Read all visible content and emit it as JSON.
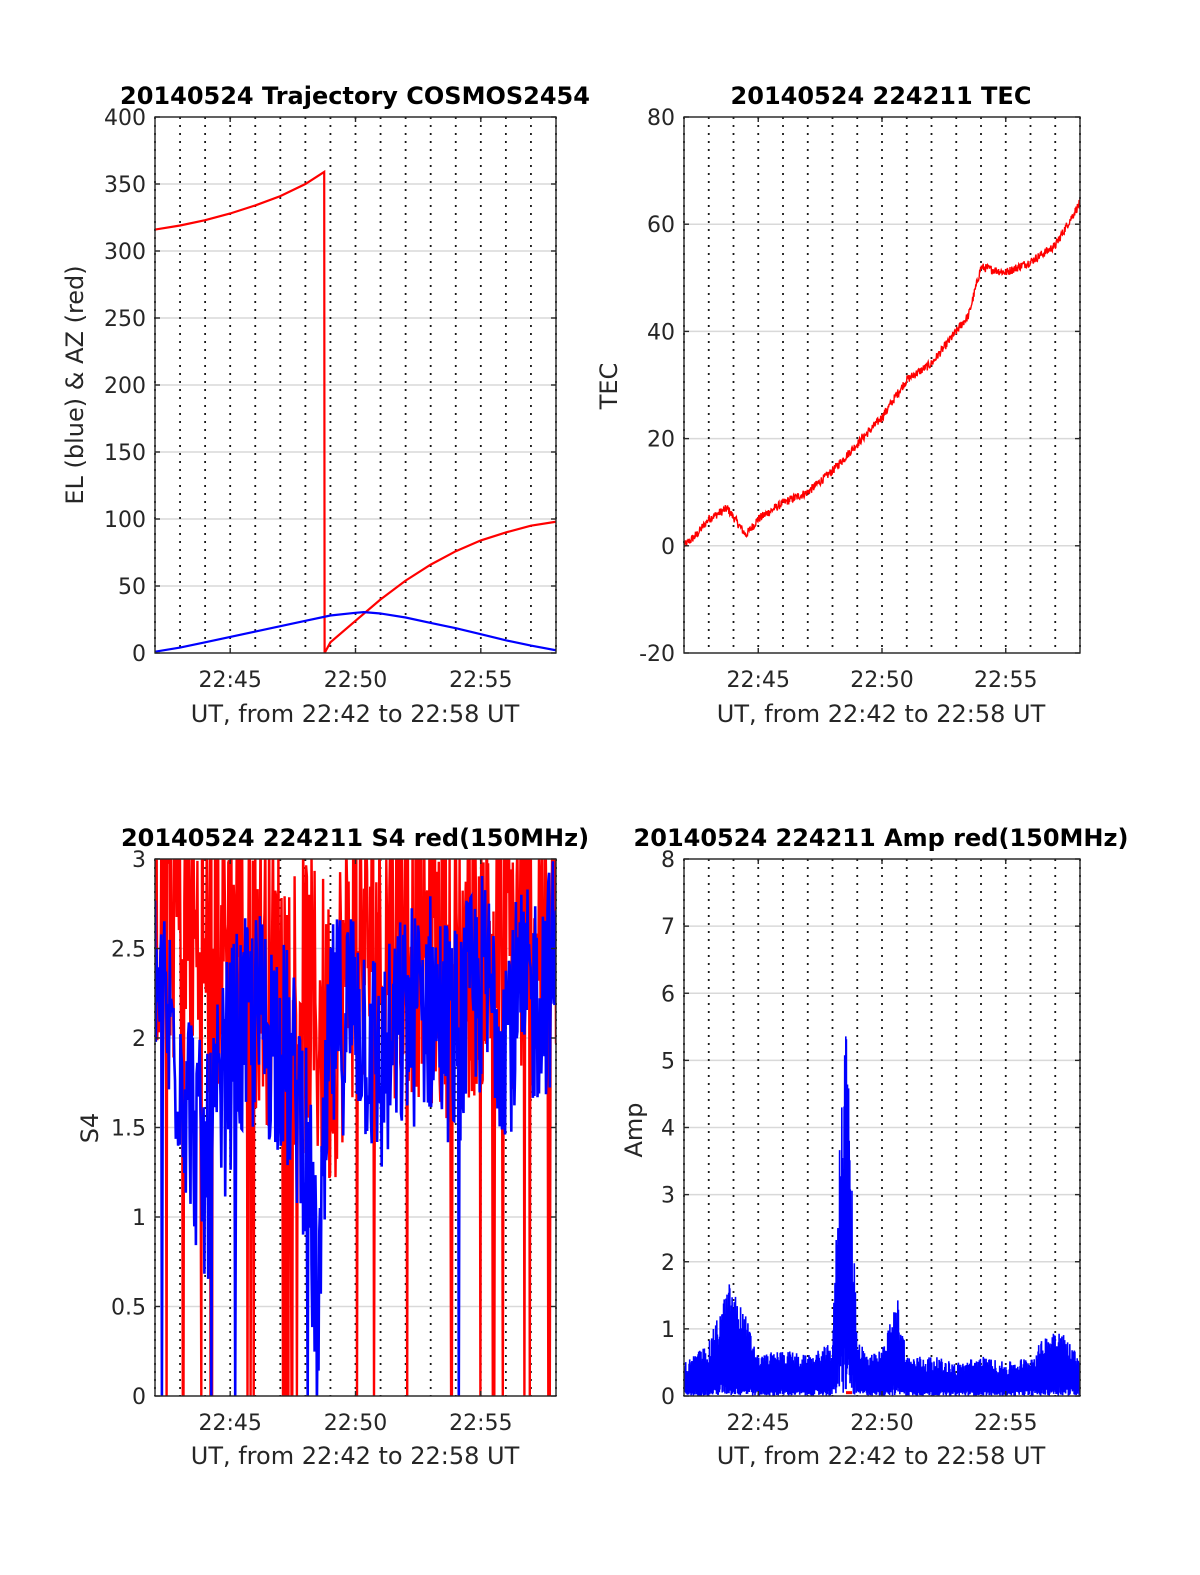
{
  "chart_data": [
    {
      "type": "line",
      "title": "20140524 Trajectory COSMOS2454",
      "xlabel": "UT, from 22:42 to 22:58 UT",
      "ylabel": "EL (blue) & AZ (red)",
      "xlim": [
        "22:42",
        "22:58"
      ],
      "ylim": [
        0,
        400
      ],
      "xticks": [
        "22:45",
        "22:50",
        "22:55"
      ],
      "yticks": [
        "0",
        "50",
        "100",
        "150",
        "200",
        "250",
        "300",
        "350",
        "400"
      ],
      "series": [
        {
          "color": "#ff0000",
          "x": [
            "22:42",
            "22:43",
            "22:44",
            "22:45",
            "22:46",
            "22:47",
            "22:48",
            "22:48:45",
            "22:48:46",
            "22:49",
            "22:50",
            "22:51",
            "22:52",
            "22:53",
            "22:54",
            "22:55",
            "22:56",
            "22:57",
            "22:58"
          ],
          "values": [
            316,
            319,
            323,
            328,
            334,
            341,
            350,
            359,
            0,
            8,
            24,
            40,
            54,
            66,
            76,
            84,
            90,
            95,
            98
          ]
        },
        {
          "color": "#0000ff",
          "x": [
            "22:42",
            "22:43",
            "22:44",
            "22:45",
            "22:46",
            "22:47",
            "22:48",
            "22:49",
            "22:50",
            "22:50:20",
            "22:51",
            "22:52",
            "22:53",
            "22:54",
            "22:55",
            "22:56",
            "22:57",
            "22:58"
          ],
          "values": [
            1,
            4,
            8,
            12,
            16,
            20,
            24,
            28,
            30,
            30.5,
            29.5,
            26.5,
            22.5,
            18.5,
            14,
            9.5,
            5.5,
            2
          ]
        }
      ],
      "grid": "on"
    },
    {
      "type": "line",
      "title": "20140524 224211 TEC",
      "xlabel": "UT, from 22:42 to 22:58 UT",
      "ylabel": "TEC",
      "xlim": [
        "22:42",
        "22:58"
      ],
      "ylim": [
        -20,
        80
      ],
      "xticks": [
        "22:45",
        "22:50",
        "22:55"
      ],
      "yticks": [
        "-20",
        "0",
        "20",
        "40",
        "60",
        "80"
      ],
      "series": [
        {
          "color": "#ff0000",
          "x": [
            "22:42",
            "22:42:30",
            "22:43",
            "22:43:45",
            "22:44:30",
            "22:45",
            "22:46",
            "22:47",
            "22:48",
            "22:49",
            "22:50",
            "22:51",
            "22:52",
            "22:53",
            "22:53:30",
            "22:54",
            "22:55",
            "22:56",
            "22:57",
            "22:58"
          ],
          "values": [
            0,
            2,
            5,
            7,
            2,
            5,
            8,
            10,
            14,
            19,
            24,
            31,
            34,
            40,
            43,
            52,
            51,
            53,
            56,
            64
          ]
        }
      ],
      "grid": "on"
    },
    {
      "type": "line",
      "title": "20140524 224211 S4 red(150MHz)",
      "xlabel": "UT, from 22:42 to 22:58 UT",
      "ylabel": "S4",
      "xlim": [
        "22:42",
        "22:58"
      ],
      "ylim": [
        0,
        3
      ],
      "xticks": [
        "22:45",
        "22:50",
        "22:55"
      ],
      "yticks": [
        "0",
        "0.5",
        "1",
        "1.5",
        "2",
        "2.5",
        "3"
      ],
      "series": [
        {
          "color": "#ff0000",
          "x": [
            "22:42",
            "22:43",
            "22:44",
            "22:45",
            "22:46",
            "22:47",
            "22:48",
            "22:49",
            "22:50",
            "22:51",
            "22:52",
            "22:53",
            "22:54",
            "22:55",
            "22:56",
            "22:57",
            "22:58"
          ],
          "values": [
            2.8,
            2.7,
            2.4,
            2.6,
            2.5,
            2.3,
            2.2,
            2.0,
            2.6,
            2.5,
            2.6,
            2.5,
            2.4,
            2.6,
            2.5,
            2.6,
            2.7
          ]
        },
        {
          "color": "#0000ff",
          "x": [
            "22:42",
            "22:43",
            "22:44",
            "22:45",
            "22:46",
            "22:47",
            "22:48",
            "22:48:30",
            "22:49",
            "22:50",
            "22:51",
            "22:52",
            "22:53",
            "22:54",
            "22:55",
            "22:56",
            "22:57",
            "22:58"
          ],
          "values": [
            2.3,
            1.9,
            1.2,
            1.9,
            2.1,
            2.0,
            1.5,
            0.4,
            2.0,
            2.2,
            1.8,
            2.1,
            2.2,
            2.0,
            2.3,
            2.1,
            2.2,
            2.4
          ]
        }
      ],
      "grid": "on"
    },
    {
      "type": "line",
      "title": "20140524 224211 Amp red(150MHz)",
      "xlabel": "UT, from 22:42 to 22:58 UT",
      "ylabel": "Amp",
      "xlim": [
        "22:42",
        "22:58"
      ],
      "ylim": [
        0,
        8
      ],
      "xticks": [
        "22:45",
        "22:50",
        "22:55"
      ],
      "yticks": [
        "0",
        "1",
        "2",
        "3",
        "4",
        "5",
        "6",
        "7",
        "8"
      ],
      "series": [
        {
          "color": "#0000ff",
          "x": [
            "22:42",
            "22:43",
            "22:43:50",
            "22:44:30",
            "22:45",
            "22:46",
            "22:47",
            "22:48",
            "22:48:30",
            "22:49",
            "22:49:30",
            "22:50",
            "22:50:40",
            "22:51",
            "22:52",
            "22:53",
            "22:54",
            "22:55",
            "22:56",
            "22:57",
            "22:58"
          ],
          "values": [
            0.5,
            0.8,
            1.7,
            1.2,
            0.6,
            0.7,
            0.6,
            0.8,
            6.2,
            0.9,
            0.6,
            0.7,
            1.5,
            0.6,
            0.6,
            0.5,
            0.6,
            0.5,
            0.6,
            1.1,
            0.6
          ]
        },
        {
          "color": "#ff0000",
          "x": [
            "22:48:40"
          ],
          "values": [
            0.05
          ]
        }
      ],
      "grid": "on"
    }
  ]
}
